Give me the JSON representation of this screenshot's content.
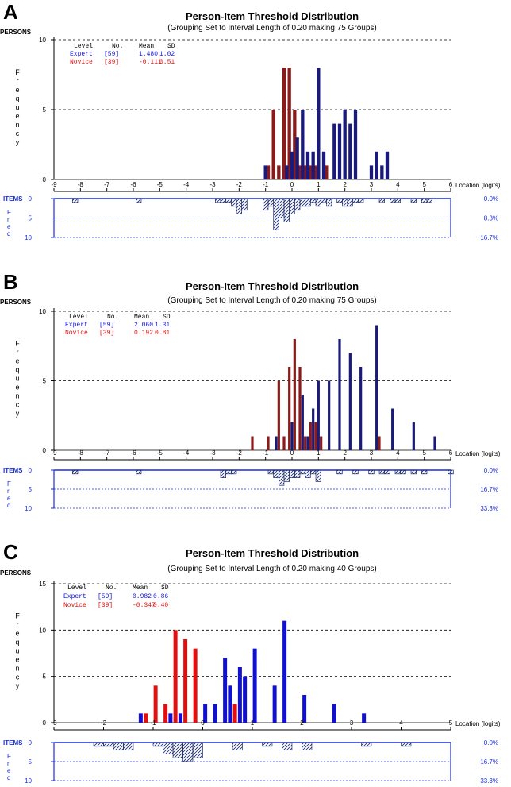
{
  "chart_data": [
    {
      "type": "bar",
      "panel_label": "A",
      "title": "Person-Item Threshold Distribution",
      "subtitle": "(Grouping Set to Interval Length of  0.20  making  75  Groups)",
      "persons_label": "PERSONS",
      "ylabel": "Frequency",
      "xlabel": "Location (logits)",
      "items_label": "ITEMS",
      "items_freq_label": "Freq",
      "xlim": [
        -9,
        6
      ],
      "xticks": [
        -9,
        -8,
        -7,
        -6,
        -5,
        -4,
        -3,
        -2,
        -1,
        0,
        1,
        2,
        3,
        4,
        5,
        6
      ],
      "ylim": [
        0,
        10
      ],
      "yticks": [
        0,
        5,
        10
      ],
      "items_ylim": [
        0,
        10
      ],
      "items_yticks": [
        0,
        5,
        10
      ],
      "items_pct": [
        "0.0%",
        "8.3%",
        "16.7%"
      ],
      "legend": {
        "headers": [
          "Level",
          "No.",
          "Mean",
          "SD"
        ],
        "rows": [
          {
            "name": "Expert",
            "no": "[59]",
            "mean": "1.480",
            "sd": "1.02",
            "color": "#1010e0"
          },
          {
            "name": "Novice",
            "no": "[39]",
            "mean": "-0.111",
            "sd": "0.51",
            "color": "#e01010"
          }
        ]
      },
      "series": [
        {
          "name": "Novice",
          "color": "#8b1a1a",
          "x": [
            -0.9,
            -0.7,
            -0.5,
            -0.3,
            -0.1,
            0.1,
            0.3,
            0.5,
            0.7,
            0.9,
            1.3
          ],
          "values": [
            1,
            5,
            1,
            8,
            8,
            5,
            1,
            1,
            1,
            1,
            1
          ]
        },
        {
          "name": "Expert",
          "color": "#1a1a7a",
          "x": [
            -1.0,
            -0.2,
            0.0,
            0.2,
            0.4,
            0.6,
            0.8,
            1.0,
            1.2,
            1.6,
            1.8,
            2.0,
            2.2,
            2.4,
            3.0,
            3.2,
            3.4,
            3.6
          ],
          "values": [
            1,
            1,
            2,
            3,
            5,
            2,
            2,
            8,
            2,
            4,
            4,
            5,
            4,
            5,
            1,
            2,
            1,
            2
          ]
        }
      ],
      "items": {
        "x": [
          -8.2,
          -5.8,
          -2.8,
          -2.6,
          -2.4,
          -2.2,
          -2.0,
          -1.8,
          -1.0,
          -0.8,
          -0.6,
          -0.4,
          -0.2,
          0.0,
          0.2,
          0.4,
          0.6,
          0.8,
          1.0,
          1.2,
          1.4,
          1.8,
          2.0,
          2.2,
          2.4,
          2.6,
          3.4,
          3.8,
          4.0,
          4.6,
          5.0,
          5.2
        ],
        "values": [
          1,
          1,
          1,
          1,
          1,
          2,
          4,
          3,
          3,
          2,
          8,
          5,
          6,
          4,
          3,
          2,
          2,
          1,
          2,
          1,
          2,
          1,
          2,
          2,
          1,
          1,
          1,
          1,
          1,
          1,
          1,
          1
        ]
      }
    },
    {
      "type": "bar",
      "panel_label": "B",
      "title": "Person-Item Threshold Distribution",
      "subtitle": "(Grouping Set to Interval Length of  0.20  making  75  Groups)",
      "persons_label": "PERSONS",
      "ylabel": "Frequency",
      "xlabel": "Location (logits)",
      "items_label": "ITEMS",
      "items_freq_label": "Freq",
      "xlim": [
        -9,
        6
      ],
      "xticks": [
        -9,
        -8,
        -7,
        -6,
        -5,
        -4,
        -3,
        -2,
        -1,
        0,
        1,
        2,
        3,
        4,
        5,
        6
      ],
      "ylim": [
        0,
        10
      ],
      "yticks": [
        0,
        5,
        10
      ],
      "items_ylim": [
        0,
        10
      ],
      "items_yticks": [
        0,
        5,
        10
      ],
      "items_pct": [
        "0.0%",
        "16.7%",
        "33.3%"
      ],
      "legend": {
        "headers": [
          "Level",
          "No.",
          "Mean",
          "SD"
        ],
        "rows": [
          {
            "name": "Expert",
            "no": "[59]",
            "mean": "2.060",
            "sd": "1.31",
            "color": "#1010e0"
          },
          {
            "name": "Novice",
            "no": "[39]",
            "mean": "0.192",
            "sd": "0.81",
            "color": "#e01010"
          }
        ]
      },
      "series": [
        {
          "name": "Novice",
          "color": "#8b1a1a",
          "x": [
            -1.5,
            -0.9,
            -0.5,
            -0.3,
            -0.1,
            0.1,
            0.3,
            0.5,
            0.7,
            0.9,
            1.1,
            3.3
          ],
          "values": [
            1,
            1,
            5,
            1,
            6,
            8,
            6,
            1,
            2,
            2,
            1,
            1
          ]
        },
        {
          "name": "Expert",
          "color": "#1a1a7a",
          "x": [
            -0.6,
            0.0,
            0.4,
            0.6,
            0.8,
            1.0,
            1.4,
            1.8,
            2.2,
            2.6,
            3.2,
            3.8,
            4.6,
            5.4
          ],
          "values": [
            1,
            2,
            4,
            1,
            3,
            5,
            5,
            8,
            7,
            6,
            9,
            3,
            2,
            1
          ]
        }
      ],
      "items": {
        "x": [
          -8.2,
          -5.8,
          -2.6,
          -2.4,
          -2.2,
          -0.8,
          -0.6,
          -0.4,
          -0.2,
          0.0,
          0.2,
          0.4,
          0.6,
          0.8,
          1.0,
          1.8,
          2.4,
          3.0,
          3.4,
          3.6,
          4.0,
          4.2,
          4.6,
          5.0,
          6.0
        ],
        "values": [
          1,
          1,
          2,
          1,
          1,
          1,
          2,
          4,
          3,
          2,
          2,
          1,
          2,
          1,
          3,
          1,
          1,
          1,
          1,
          1,
          1,
          1,
          1,
          1,
          1
        ]
      }
    },
    {
      "type": "bar",
      "panel_label": "C",
      "title": "Person-Item Threshold Distribution",
      "subtitle": "(Grouping Set to Interval Length of  0.20  making  40  Groups)",
      "persons_label": "PERSONS",
      "ylabel": "Frequency",
      "xlabel": "Location (logits)",
      "items_label": "ITEMS",
      "items_freq_label": "Freq",
      "xlim": [
        -3,
        5
      ],
      "xticks": [
        -3,
        -2,
        -1,
        0,
        1,
        2,
        3,
        4,
        5
      ],
      "ylim": [
        0,
        15
      ],
      "yticks": [
        0,
        5,
        10,
        15
      ],
      "items_ylim": [
        0,
        10
      ],
      "items_yticks": [
        0,
        5,
        10
      ],
      "items_pct": [
        "0.0%",
        "16.7%",
        "33.3%"
      ],
      "legend": {
        "headers": [
          "Level",
          "No.",
          "Mean",
          "SD"
        ],
        "rows": [
          {
            "name": "Expert",
            "no": "[59]",
            "mean": "0.982",
            "sd": "0.86",
            "color": "#1010e0"
          },
          {
            "name": "Novice",
            "no": "[39]",
            "mean": "-0.347",
            "sd": "0.40",
            "color": "#e01010"
          }
        ]
      },
      "series": [
        {
          "name": "Novice",
          "color": "#e01010",
          "x": [
            -1.15,
            -0.95,
            -0.75,
            -0.55,
            -0.35,
            -0.15,
            0.65
          ],
          "values": [
            1,
            4,
            2,
            10,
            9,
            8,
            2
          ]
        },
        {
          "name": "Expert",
          "color": "#1010d0",
          "x": [
            -1.25,
            -0.65,
            -0.45,
            0.05,
            0.25,
            0.45,
            0.55,
            0.75,
            0.85,
            1.05,
            1.45,
            1.65,
            2.05,
            2.65,
            3.25
          ],
          "values": [
            1,
            1,
            1,
            2,
            2,
            7,
            4,
            6,
            5,
            8,
            4,
            11,
            3,
            2,
            1
          ]
        }
      ],
      "items": {
        "x": [
          -2.1,
          -1.9,
          -1.7,
          -1.5,
          -0.9,
          -0.7,
          -0.5,
          -0.3,
          -0.1,
          0.7,
          1.3,
          1.7,
          2.1,
          3.3,
          4.1
        ],
        "values": [
          1,
          1,
          2,
          2,
          1,
          3,
          4,
          5,
          4,
          2,
          1,
          2,
          2,
          1,
          1
        ]
      }
    }
  ]
}
